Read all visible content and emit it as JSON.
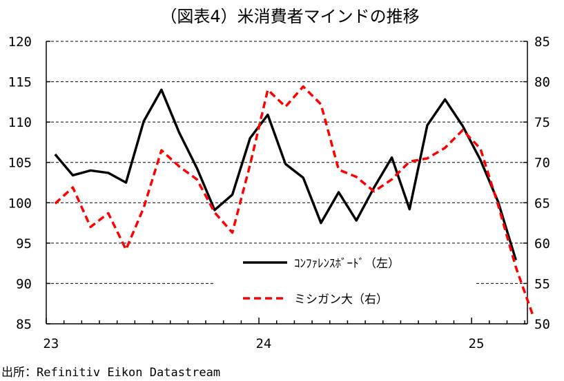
{
  "chart_data": {
    "type": "line",
    "title": "（図表4）米消費者マインドの推移",
    "source": "出所：Refinitiv Eikon Datastream",
    "xlabel": "",
    "x_tick_labels": [
      "23",
      "24",
      "25"
    ],
    "y_left": {
      "min": 85,
      "max": 120,
      "ticks": [
        85,
        90,
        95,
        100,
        105,
        110,
        115,
        120
      ]
    },
    "y_right": {
      "min": 50,
      "max": 85,
      "ticks": [
        50,
        55,
        60,
        65,
        70,
        75,
        80,
        85
      ]
    },
    "grid": "horizontal dashed",
    "legend_position": "lower-right",
    "months": [
      "2023-01",
      "2023-02",
      "2023-03",
      "2023-04",
      "2023-05",
      "2023-06",
      "2023-07",
      "2023-08",
      "2023-09",
      "2023-10",
      "2023-11",
      "2023-12",
      "2024-01",
      "2024-02",
      "2024-03",
      "2024-04",
      "2024-05",
      "2024-06",
      "2024-07",
      "2024-08",
      "2024-09",
      "2024-10",
      "2024-11",
      "2024-12",
      "2025-01",
      "2025-02",
      "2025-03",
      "2025-04"
    ],
    "series": [
      {
        "name": "ｺﾝﾌｧﾚﾝｽﾎﾞｰﾄﾞ（左）",
        "axis": "left",
        "color": "#000000",
        "style": "solid",
        "values": [
          106.0,
          103.4,
          104.0,
          103.7,
          102.5,
          110.1,
          114.0,
          108.7,
          104.3,
          99.1,
          101.0,
          108.0,
          110.9,
          104.8,
          103.1,
          97.5,
          101.3,
          97.8,
          101.9,
          105.6,
          99.2,
          109.6,
          112.8,
          109.5,
          105.3,
          100.1,
          92.9,
          null
        ]
      },
      {
        "name": "ミシガン大（右）",
        "axis": "right",
        "color": "#ff0000",
        "style": "dashed",
        "values": [
          64.9,
          66.9,
          62.0,
          63.7,
          59.2,
          64.4,
          71.5,
          69.5,
          67.9,
          63.8,
          61.3,
          69.7,
          79.0,
          76.9,
          79.4,
          77.2,
          69.1,
          68.2,
          66.4,
          67.9,
          70.1,
          70.5,
          71.8,
          74.0,
          71.7,
          64.7,
          57.0,
          50.8
        ]
      }
    ]
  }
}
